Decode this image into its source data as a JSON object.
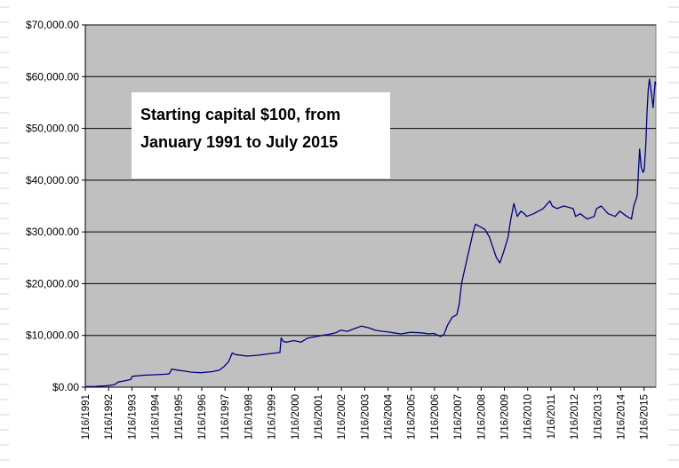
{
  "chart_data": {
    "type": "line",
    "title": "",
    "xlabel": "",
    "ylabel": "",
    "y_tick_labels": [
      "$0.00",
      "$10,000.00",
      "$20,000.00",
      "$30,000.00",
      "$40,000.00",
      "$50,000.00",
      "$60,000.00",
      "$70,000.00"
    ],
    "y_ticks": [
      0,
      10000,
      20000,
      30000,
      40000,
      50000,
      60000,
      70000
    ],
    "ylim": [
      0,
      70000
    ],
    "x_tick_labels": [
      "1/16/1991",
      "1/16/1992",
      "1/16/1993",
      "1/16/1994",
      "1/16/1995",
      "1/16/1996",
      "1/16/1997",
      "1/16/1998",
      "1/16/1999",
      "1/16/2000",
      "1/16/2001",
      "1/16/2002",
      "1/16/2003",
      "1/16/2004",
      "1/16/2005",
      "1/16/2006",
      "1/16/2007",
      "1/16/2008",
      "1/16/2009",
      "1/16/2010",
      "1/16/2011",
      "1/16/2012",
      "1/16/2013",
      "1/16/2014",
      "1/16/2015"
    ],
    "xlim": [
      1991.04,
      2015.55
    ],
    "grid": {
      "horizontal": true,
      "vertical": false
    },
    "colors": {
      "plot_background": "#c0c0c0",
      "line": "#000080",
      "gridline": "#000000"
    },
    "annotation": {
      "lines": [
        "Starting capital $100, from",
        "January 1991 to July 2015"
      ],
      "placement": "top-left"
    },
    "series": [
      {
        "x": [
          1991.04,
          1991.5,
          1992.0,
          1992.3,
          1992.45,
          1992.7,
          1993.0,
          1993.05,
          1993.5,
          1994.0,
          1994.5,
          1994.65,
          1994.75,
          1995.0,
          1995.3,
          1995.6,
          1996.0,
          1996.5,
          1996.8,
          1997.0,
          1997.2,
          1997.35,
          1997.5,
          1998.0,
          1998.5,
          1999.0,
          1999.4,
          1999.45,
          1999.55,
          1999.7,
          2000.0,
          2000.3,
          2000.6,
          2001.0,
          2001.2,
          2001.5,
          2001.8,
          2002.0,
          2002.3,
          2002.6,
          2002.9,
          2003.2,
          2003.5,
          2003.8,
          2004.0,
          2004.3,
          2004.6,
          2005.0,
          2005.5,
          2005.8,
          2006.0,
          2006.2,
          2006.3,
          2006.45,
          2006.6,
          2006.8,
          2007.0,
          2007.1,
          2007.2,
          2007.35,
          2007.5,
          2007.6,
          2007.7,
          2007.8,
          2008.0,
          2008.2,
          2008.4,
          2008.55,
          2008.7,
          2008.85,
          2009.0,
          2009.1,
          2009.2,
          2009.3,
          2009.45,
          2009.6,
          2009.75,
          2009.9,
          2010.0,
          2010.3,
          2010.5,
          2010.7,
          2011.0,
          2011.1,
          2011.3,
          2011.6,
          2012.0,
          2012.1,
          2012.3,
          2012.6,
          2012.9,
          2013.0,
          2013.2,
          2013.5,
          2013.8,
          2014.0,
          2014.3,
          2014.5,
          2014.6,
          2014.75,
          2014.85,
          2014.92,
          2015.0,
          2015.05,
          2015.12,
          2015.17,
          2015.22,
          2015.27,
          2015.32,
          2015.38,
          2015.43,
          2015.48,
          2015.52,
          2015.55
        ],
        "values": [
          100,
          150,
          300,
          500,
          1000,
          1200,
          1500,
          2100,
          2300,
          2400,
          2500,
          2600,
          3500,
          3300,
          3100,
          2900,
          2800,
          3000,
          3300,
          4000,
          5000,
          6600,
          6300,
          6000,
          6200,
          6500,
          6700,
          9500,
          8800,
          8700,
          9000,
          8700,
          9500,
          9800,
          10000,
          10200,
          10500,
          11000,
          10800,
          11300,
          11800,
          11500,
          11000,
          10800,
          10700,
          10500,
          10300,
          10600,
          10500,
          10300,
          10400,
          10000,
          9800,
          10200,
          12000,
          13500,
          14000,
          16000,
          20000,
          23000,
          26000,
          28000,
          30000,
          31500,
          31000,
          30500,
          29000,
          27000,
          25000,
          24000,
          26000,
          27500,
          29000,
          32000,
          35500,
          33000,
          34000,
          33500,
          33000,
          33500,
          34000,
          34500,
          36000,
          35000,
          34500,
          35000,
          34500,
          33000,
          33500,
          32500,
          33000,
          34500,
          35000,
          33500,
          33000,
          34000,
          33000,
          32500,
          35000,
          37000,
          46000,
          42500,
          41500,
          42000,
          47000,
          53000,
          57500,
          59500,
          58000,
          56000,
          54000,
          57000,
          59000,
          58500
        ]
      }
    ]
  }
}
